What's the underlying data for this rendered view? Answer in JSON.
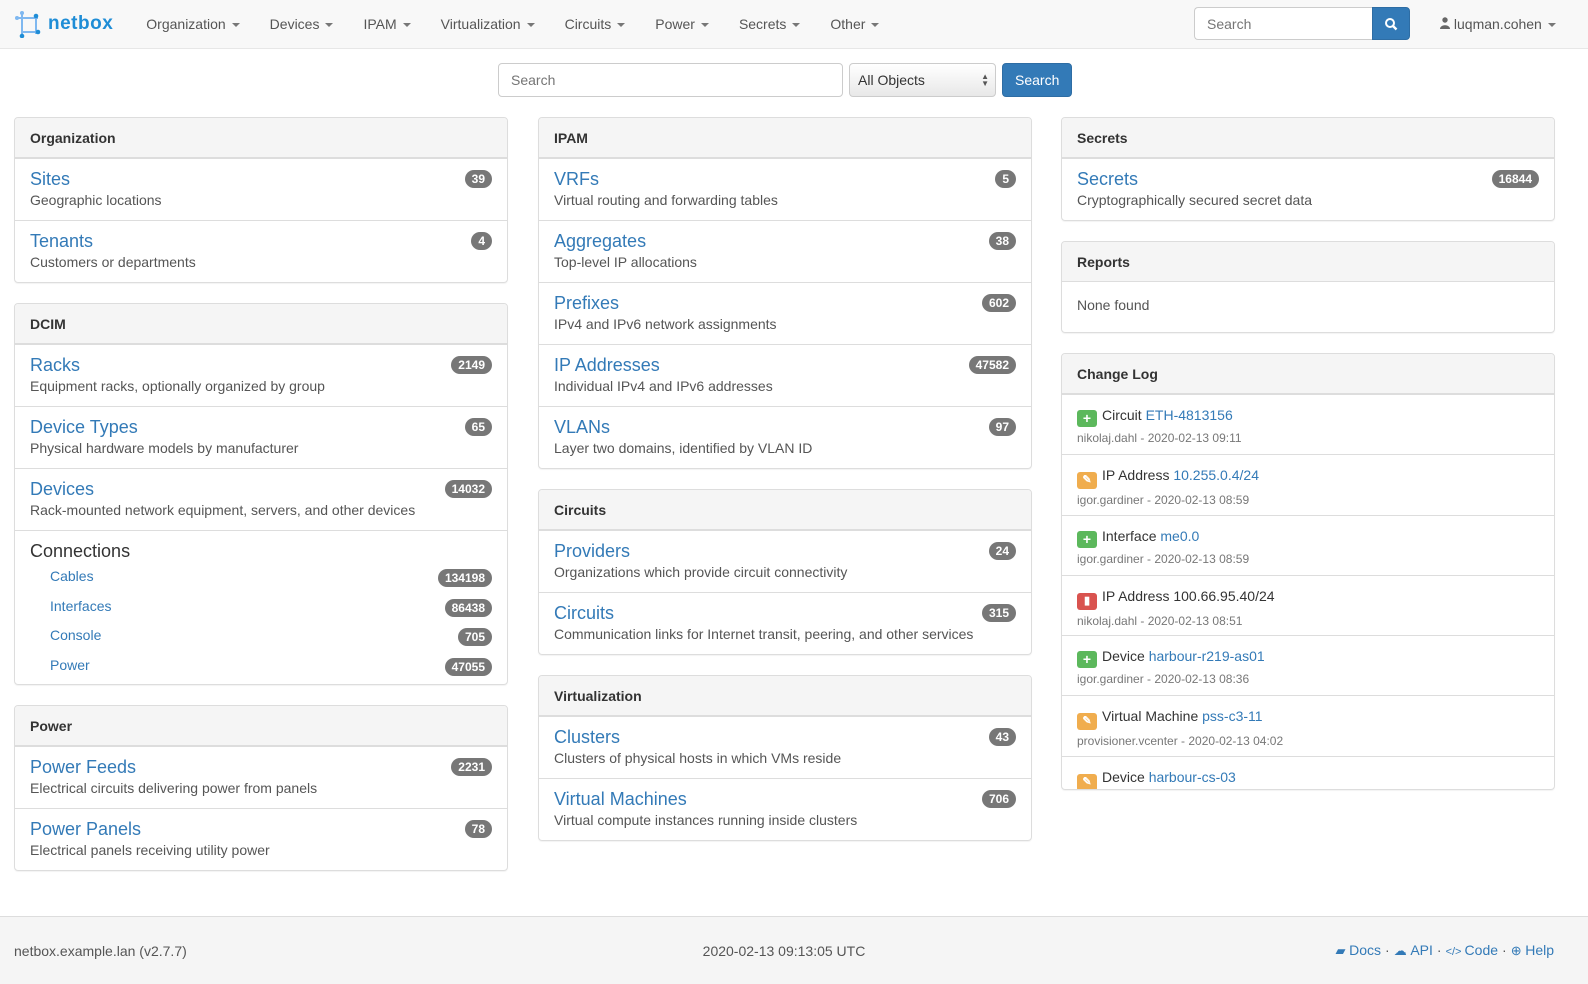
{
  "brand": "netbox",
  "nav": [
    "Organization",
    "Devices",
    "IPAM",
    "Virtualization",
    "Circuits",
    "Power",
    "Secrets",
    "Other"
  ],
  "nav_search_placeholder": "Search",
  "user": "luqman.cohen",
  "search": {
    "placeholder": "Search",
    "select": "All Objects",
    "button": "Search"
  },
  "colors": {
    "accent": "#337ab7",
    "added": "#5cb85c",
    "changed": "#f0ad4e",
    "deleted": "#d9534f",
    "badge": "#777777"
  },
  "col1": [
    {
      "title": "Organization",
      "items": [
        {
          "name": "Sites",
          "desc": "Geographic locations",
          "count": "39"
        },
        {
          "name": "Tenants",
          "desc": "Customers or departments",
          "count": "4"
        }
      ]
    },
    {
      "title": "DCIM",
      "items": [
        {
          "name": "Racks",
          "desc": "Equipment racks, optionally organized by group",
          "count": "2149"
        },
        {
          "name": "Device Types",
          "desc": "Physical hardware models by manufacturer",
          "count": "65"
        },
        {
          "name": "Devices",
          "desc": "Rack-mounted network equipment, servers, and other devices",
          "count": "14032"
        }
      ],
      "connections": {
        "title": "Connections",
        "items": [
          {
            "name": "Cables",
            "count": "134198"
          },
          {
            "name": "Interfaces",
            "count": "86438"
          },
          {
            "name": "Console",
            "count": "705"
          },
          {
            "name": "Power",
            "count": "47055"
          }
        ]
      }
    },
    {
      "title": "Power",
      "items": [
        {
          "name": "Power Feeds",
          "desc": "Electrical circuits delivering power from panels",
          "count": "2231"
        },
        {
          "name": "Power Panels",
          "desc": "Electrical panels receiving utility power",
          "count": "78"
        }
      ]
    }
  ],
  "col2": [
    {
      "title": "IPAM",
      "items": [
        {
          "name": "VRFs",
          "desc": "Virtual routing and forwarding tables",
          "count": "5"
        },
        {
          "name": "Aggregates",
          "desc": "Top-level IP allocations",
          "count": "38"
        },
        {
          "name": "Prefixes",
          "desc": "IPv4 and IPv6 network assignments",
          "count": "602"
        },
        {
          "name": "IP Addresses",
          "desc": "Individual IPv4 and IPv6 addresses",
          "count": "47582"
        },
        {
          "name": "VLANs",
          "desc": "Layer two domains, identified by VLAN ID",
          "count": "97"
        }
      ]
    },
    {
      "title": "Circuits",
      "items": [
        {
          "name": "Providers",
          "desc": "Organizations which provide circuit connectivity",
          "count": "24"
        },
        {
          "name": "Circuits",
          "desc": "Communication links for Internet transit, peering, and other services",
          "count": "315"
        }
      ]
    },
    {
      "title": "Virtualization",
      "items": [
        {
          "name": "Clusters",
          "desc": "Clusters of physical hosts in which VMs reside",
          "count": "43"
        },
        {
          "name": "Virtual Machines",
          "desc": "Virtual compute instances running inside clusters",
          "count": "706"
        }
      ]
    }
  ],
  "col3": [
    {
      "title": "Secrets",
      "items": [
        {
          "name": "Secrets",
          "desc": "Cryptographically secured secret data",
          "count": "16844"
        }
      ]
    },
    {
      "title": "Reports",
      "none": "None found"
    }
  ],
  "changelog": {
    "title": "Change Log",
    "items": [
      {
        "action": "added",
        "type": "Circuit",
        "obj": "ETH-4813156",
        "link": true,
        "meta": "nikolaj.dahl - 2020-02-13 09:11"
      },
      {
        "action": "changed",
        "type": "IP Address",
        "obj": "10.255.0.4/24",
        "link": true,
        "meta": "igor.gardiner - 2020-02-13 08:59"
      },
      {
        "action": "added",
        "type": "Interface",
        "obj": "me0.0",
        "link": true,
        "meta": "igor.gardiner - 2020-02-13 08:59"
      },
      {
        "action": "deleted",
        "type": "IP Address",
        "obj": "100.66.95.40/24",
        "link": false,
        "meta": "nikolaj.dahl - 2020-02-13 08:51"
      },
      {
        "action": "added",
        "type": "Device",
        "obj": "harbour-r219-as01",
        "link": true,
        "meta": "igor.gardiner - 2020-02-13 08:36"
      },
      {
        "action": "changed",
        "type": "Virtual Machine",
        "obj": "pss-c3-11",
        "link": true,
        "meta": "provisioner.vcenter - 2020-02-13 04:02"
      },
      {
        "action": "changed",
        "type": "Device",
        "obj": "harbour-cs-03",
        "link": true,
        "meta": ""
      }
    ]
  },
  "footer": {
    "host": "netbox.example.lan (v2.7.7)",
    "time": "2020-02-13 09:13:05 UTC",
    "links": [
      "Docs",
      "API",
      "Code",
      "Help"
    ]
  }
}
